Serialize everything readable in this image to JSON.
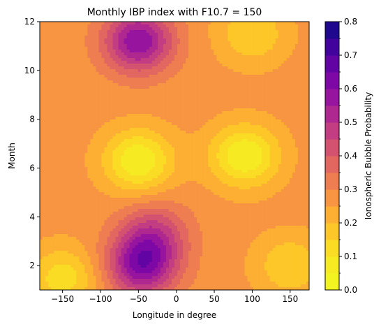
{
  "chart_data": {
    "type": "heatmap",
    "subtype": "filled-contour",
    "title": "Monthly IBP index with F10.7 = 150",
    "xlabel": "Longitude in degree",
    "ylabel": "Month",
    "colorbar_label": "Ionospheric Bubble Probability",
    "colormap": "plasma_r",
    "xlim": [
      -180,
      175
    ],
    "ylim": [
      1,
      12
    ],
    "clim": [
      0,
      0.8
    ],
    "x_ticks": [
      -150,
      -100,
      -50,
      0,
      50,
      100,
      150
    ],
    "y_ticks": [
      2,
      4,
      6,
      8,
      10,
      12
    ],
    "colorbar_ticks": [
      "0.0",
      "0.1",
      "0.2",
      "0.3",
      "0.4",
      "0.5",
      "0.6",
      "0.7",
      "0.8"
    ],
    "contour_levels": [
      0,
      0.05,
      0.1,
      0.15,
      0.2,
      0.25,
      0.3,
      0.35,
      0.4,
      0.45,
      0.5,
      0.55,
      0.6,
      0.65,
      0.7,
      0.75,
      0.8
    ],
    "features": [
      {
        "longitude": -50,
        "month": 6.3,
        "value": 0.05
      },
      {
        "longitude": 90,
        "month": 6.5,
        "value": 0.05
      },
      {
        "longitude": -50,
        "month": 11.2,
        "value": 0.6
      },
      {
        "longitude": -45,
        "month": 2.0,
        "value": 0.6
      },
      {
        "longitude": -30,
        "month": 3.3,
        "value": 0.45
      },
      {
        "longitude": -150,
        "month": 1.5,
        "value": 0.12
      },
      {
        "longitude": 100,
        "month": 11.5,
        "value": 0.15
      },
      {
        "longitude": 150,
        "month": 2.0,
        "value": 0.15
      }
    ]
  }
}
